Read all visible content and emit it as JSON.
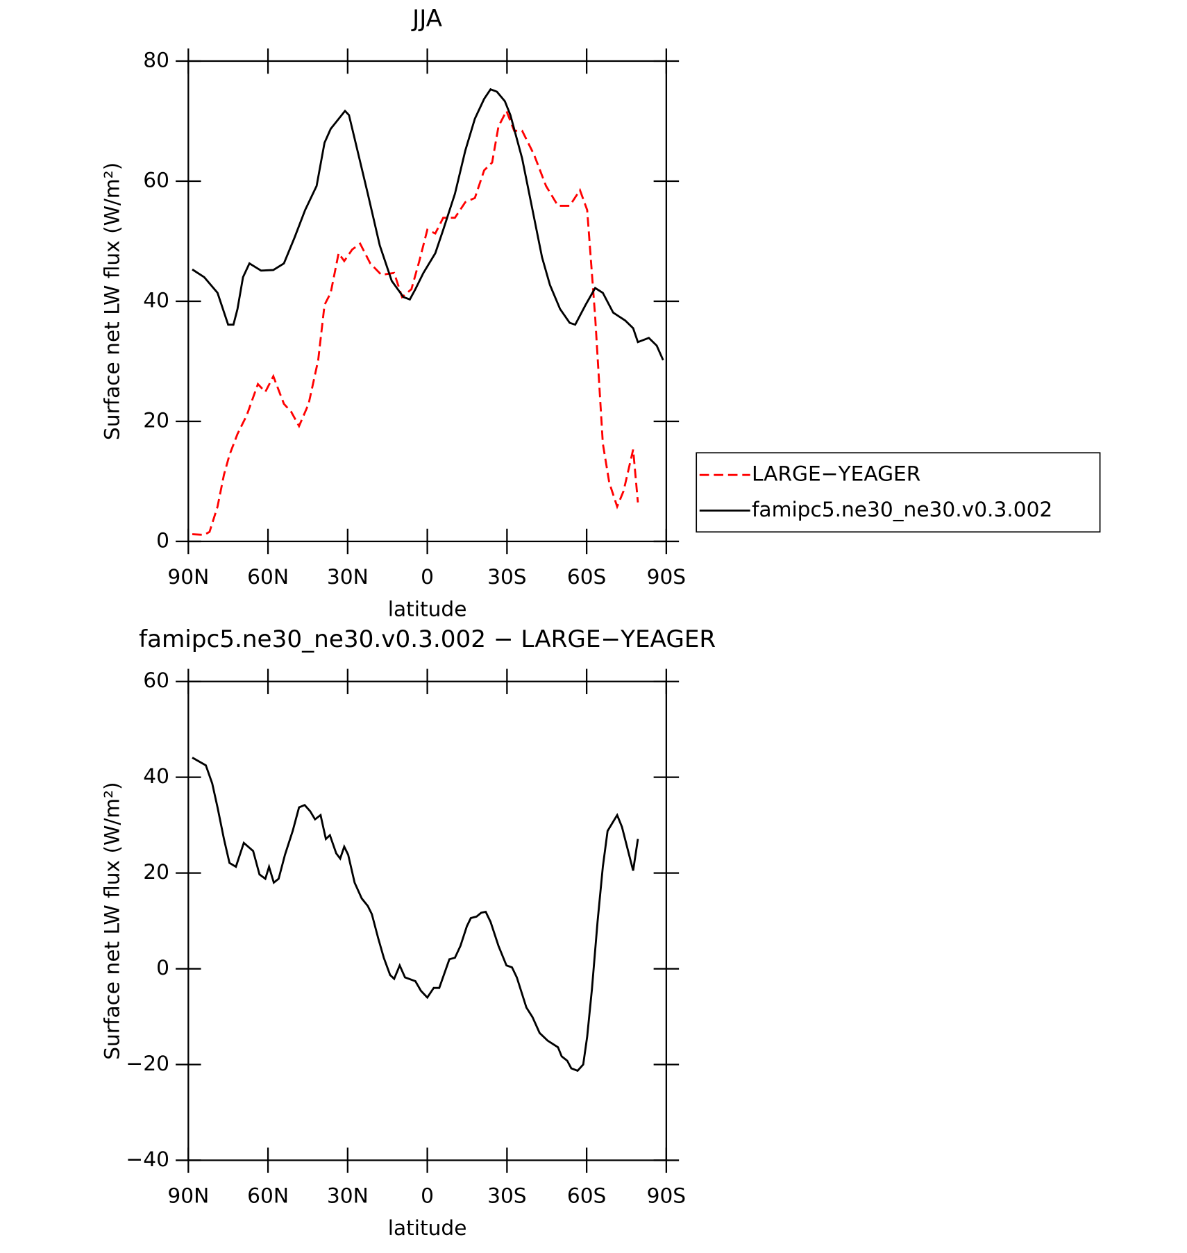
{
  "chart_data": [
    {
      "type": "line",
      "title": "JJA",
      "xlabel": "latitude",
      "ylabel": "Surface net LW flux (W/m²)",
      "xlim": [
        90,
        -90
      ],
      "xticks": [
        {
          "value": 90,
          "label": "90N"
        },
        {
          "value": 60,
          "label": "60N"
        },
        {
          "value": 30,
          "label": "30N"
        },
        0,
        {
          "value": -30,
          "label": "30S"
        },
        {
          "value": -60,
          "label": "60S"
        },
        {
          "value": -90,
          "label": "90S"
        }
      ],
      "ylim": [
        0,
        80
      ],
      "yticks": [
        0,
        20,
        40,
        60,
        80
      ],
      "legend": "right",
      "series": [
        {
          "name": "LARGE−YEAGER",
          "color": "#ff0000",
          "dash": true,
          "x": [
            88.5,
            84,
            82,
            79,
            76.6,
            74.5,
            71.5,
            68,
            63.8,
            61,
            58,
            54,
            51.3,
            48.3,
            44.7,
            41.1,
            38.7,
            36.4,
            33.4,
            31.3,
            28.3,
            25.3,
            21.5,
            17.3,
            12.5,
            9.5,
            6,
            3,
            0,
            -3,
            -6,
            -10.4,
            -14.3,
            -17.9,
            -21.4,
            -24.4,
            -26.8,
            -29.8,
            -32.7,
            -35.7,
            -40.2,
            -44.7,
            -49.2,
            -53.6,
            -57.5,
            -60.2,
            -63.2,
            -66.1,
            -68.5,
            -71.5,
            -73.9,
            -77.5,
            -79.3
          ],
          "values": [
            1.2,
            1.1,
            1.6,
            5.8,
            11.1,
            14.4,
            17.9,
            21,
            26.2,
            24.9,
            27.5,
            22.9,
            21.6,
            19.2,
            22.9,
            30.2,
            39.4,
            41.4,
            48,
            46.7,
            48.6,
            49.6,
            46.3,
            44.4,
            44.7,
            40.7,
            42,
            46.7,
            51.9,
            51.3,
            53.9,
            53.9,
            56.5,
            57.2,
            61.8,
            63.1,
            69.1,
            71.7,
            68.4,
            68.4,
            64.4,
            59.2,
            55.9,
            55.9,
            58.5,
            55.2,
            37.4,
            16.3,
            9.8,
            5.8,
            8.4,
            15.3,
            6.5
          ]
        },
        {
          "name": "famipc5.ne30_ne30.v0.3.002",
          "color": "#000000",
          "dash": false,
          "x": [
            88.5,
            84,
            79,
            75,
            73,
            71.5,
            69.4,
            67,
            62.6,
            58,
            54,
            50,
            46,
            41.7,
            38.7,
            36.4,
            31,
            29.5,
            27.4,
            22.4,
            17.9,
            13.4,
            9,
            6.6,
            4.5,
            1.5,
            -3,
            -6,
            -10.4,
            -14.3,
            -17.9,
            -21.4,
            -23.8,
            -26.2,
            -29.2,
            -31.3,
            -35.7,
            -39.3,
            -43.2,
            -46.2,
            -50,
            -53.6,
            -55.7,
            -59.6,
            -63.2,
            -66.1,
            -70,
            -74.5,
            -77.5,
            -79.3,
            -83.4,
            -86.4,
            -88.8
          ],
          "values": [
            45.3,
            44,
            41.4,
            36.1,
            36.1,
            38.7,
            44,
            46.3,
            45.1,
            45.2,
            46.3,
            50.6,
            55.2,
            59.2,
            66.4,
            68.7,
            71.7,
            71,
            67.1,
            57.9,
            49.3,
            43.4,
            40.7,
            40.3,
            42,
            44.7,
            48,
            51.9,
            57.9,
            65.1,
            70.4,
            73.7,
            75.3,
            74.9,
            73.3,
            71,
            63.8,
            55.9,
            47.3,
            42.7,
            38.7,
            36.4,
            36.1,
            39.4,
            42.2,
            41.4,
            38.1,
            36.8,
            35.5,
            33.2,
            33.9,
            32.6,
            30.2
          ]
        }
      ]
    },
    {
      "type": "line",
      "title": "famipc5.ne30_ne30.v0.3.002 − LARGE−YEAGER",
      "xlabel": "latitude",
      "ylabel": "Surface net LW flux (W/m²)",
      "xlim": [
        90,
        -90
      ],
      "xticks": [
        {
          "value": 90,
          "label": "90N"
        },
        {
          "value": 60,
          "label": "60N"
        },
        {
          "value": 30,
          "label": "30N"
        },
        0,
        {
          "value": -30,
          "label": "30S"
        },
        {
          "value": -60,
          "label": "60S"
        },
        {
          "value": -90,
          "label": "90S"
        }
      ],
      "ylim": [
        -40,
        60
      ],
      "yticks": [
        {
          "value": -40,
          "label": "−40"
        },
        {
          "value": -20,
          "label": "−20"
        },
        0,
        20,
        40,
        60
      ],
      "series": [
        {
          "color": "#000000",
          "dash": false,
          "x": [
            88.5,
            83.4,
            81,
            79,
            76.6,
            74.5,
            72.1,
            69.1,
            65.6,
            63.2,
            61,
            59.6,
            57.8,
            56,
            53.6,
            50.7,
            48.3,
            46.2,
            44.1,
            42.3,
            40.2,
            38.2,
            36.7,
            34.3,
            32.8,
            31.3,
            29.8,
            27.4,
            24.7,
            22.4,
            20.9,
            18.5,
            16.4,
            14,
            12.5,
            10.4,
            8.4,
            4.5,
            2.4,
            0,
            -2.4,
            -4.5,
            -8.3,
            -10.4,
            -12.5,
            -14.9,
            -16.4,
            -18.5,
            -20.3,
            -22,
            -23.8,
            -26.8,
            -29.8,
            -31.9,
            -33.7,
            -37.3,
            -39.6,
            -42.3,
            -45.3,
            -49.2,
            -50.6,
            -52.7,
            -54.2,
            -56.6,
            -58.7,
            -60.2,
            -62,
            -64.1,
            -66.1,
            -67.9,
            -71.5,
            -73.3,
            -77.5,
            -79.3
          ],
          "values": [
            44.1,
            42.5,
            38.7,
            33.7,
            27.1,
            22.1,
            21.3,
            26.3,
            24.6,
            19.7,
            18.8,
            21.3,
            18,
            18.8,
            23.8,
            28.8,
            33.7,
            34.2,
            32.9,
            31.2,
            32.1,
            27.1,
            27.9,
            24.1,
            23,
            25.5,
            23.8,
            18,
            14.7,
            13.1,
            11.4,
            6.4,
            2.3,
            -1.3,
            -2.1,
            0.7,
            -1.8,
            -2.6,
            -4.6,
            -6,
            -4,
            -4,
            2,
            2.3,
            4.8,
            8.9,
            10.6,
            10.9,
            11.7,
            11.9,
            9.8,
            4.8,
            0.7,
            0.3,
            -1.8,
            -8.1,
            -10.1,
            -13.4,
            -15,
            -16.4,
            -18.3,
            -19.2,
            -20.8,
            -21.3,
            -20,
            -14.2,
            -4.3,
            9.8,
            21.3,
            28.8,
            32.1,
            29.6,
            20.5,
            27.1
          ]
        }
      ]
    }
  ]
}
